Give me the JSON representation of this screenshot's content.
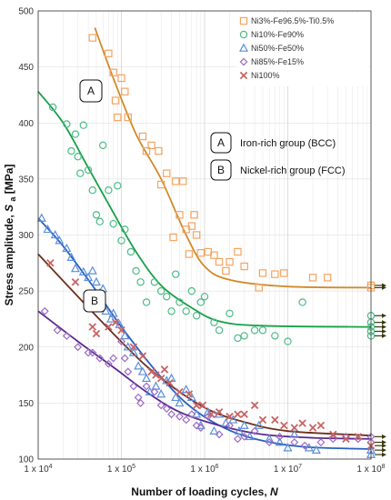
{
  "chart_data": {
    "type": "scatter",
    "xlabel_prefix": "Number of loading cycles,",
    "xlabel_var": "N",
    "ylabel_prefix": "Stress amplitude,",
    "ylabel_var": "S",
    "ylabel_sub": "a",
    "ylabel_unit": "[MPa]",
    "xlim": [
      10000,
      100000000
    ],
    "ylim": [
      100,
      500
    ],
    "yticks": [
      100,
      150,
      200,
      250,
      300,
      350,
      400,
      450,
      500
    ],
    "xticks": [
      {
        "base": "1 x 10",
        "exp": "4",
        "value": 10000
      },
      {
        "base": "1 x 10",
        "exp": "5",
        "value": 100000
      },
      {
        "base": "1 x 10",
        "exp": "6",
        "value": 1000000
      },
      {
        "base": "1 x 10",
        "exp": "7",
        "value": 10000000
      },
      {
        "base": "1 x 10",
        "exp": "8",
        "value": 100000000
      }
    ],
    "grid": true,
    "legend_position": "top-right",
    "series": [
      {
        "name": "Ni3%-Fe96.5%-Ti0.5%",
        "color": "#F4A460",
        "line_color": "#D08A2A",
        "marker": "square",
        "points": [
          [
            45000,
            476
          ],
          [
            70000,
            462
          ],
          [
            80000,
            445
          ],
          [
            100000,
            440
          ],
          [
            85000,
            420
          ],
          [
            110000,
            428
          ],
          [
            90000,
            405
          ],
          [
            120000,
            405
          ],
          [
            180000,
            388
          ],
          [
            200000,
            375
          ],
          [
            230000,
            380
          ],
          [
            280000,
            375
          ],
          [
            300000,
            345
          ],
          [
            350000,
            355
          ],
          [
            450000,
            348
          ],
          [
            500000,
            318
          ],
          [
            420000,
            298
          ],
          [
            550000,
            348
          ],
          [
            600000,
            305
          ],
          [
            700000,
            308
          ],
          [
            800000,
            300
          ],
          [
            750000,
            318
          ],
          [
            900000,
            284
          ],
          [
            1100000,
            285
          ],
          [
            650000,
            283
          ],
          [
            1300000,
            282
          ],
          [
            1500000,
            276
          ],
          [
            1800000,
            268
          ],
          [
            2000000,
            276
          ],
          [
            2500000,
            285
          ],
          [
            3000000,
            272
          ],
          [
            4500000,
            253
          ],
          [
            5000000,
            266
          ],
          [
            7000000,
            265
          ],
          [
            9000000,
            266
          ],
          [
            20000000,
            262
          ],
          [
            30000000,
            262
          ]
        ],
        "runout": [
          [
            100000000,
            255
          ],
          [
            100000000,
            253
          ]
        ],
        "curve": [
          [
            48000,
            485
          ],
          [
            80000,
            440
          ],
          [
            150000,
            390
          ],
          [
            300000,
            350
          ],
          [
            600000,
            300
          ],
          [
            1000000,
            272
          ],
          [
            2000000,
            260
          ],
          [
            10000000,
            254
          ],
          [
            100000000,
            253
          ]
        ]
      },
      {
        "name": "Ni10%-Fe90%",
        "color": "#4DBB88",
        "line_color": "#18A048",
        "marker": "circle",
        "points": [
          [
            15000,
            414
          ],
          [
            22000,
            399
          ],
          [
            25000,
            375
          ],
          [
            28000,
            390
          ],
          [
            30000,
            370
          ],
          [
            32000,
            355
          ],
          [
            35000,
            398
          ],
          [
            40000,
            358
          ],
          [
            45000,
            340
          ],
          [
            50000,
            318
          ],
          [
            55000,
            312
          ],
          [
            60000,
            380
          ],
          [
            70000,
            340
          ],
          [
            80000,
            310
          ],
          [
            90000,
            344
          ],
          [
            100000,
            295
          ],
          [
            110000,
            305
          ],
          [
            130000,
            285
          ],
          [
            150000,
            268
          ],
          [
            170000,
            258
          ],
          [
            200000,
            240
          ],
          [
            250000,
            258
          ],
          [
            300000,
            250
          ],
          [
            350000,
            245
          ],
          [
            400000,
            232
          ],
          [
            450000,
            265
          ],
          [
            500000,
            240
          ],
          [
            600000,
            232
          ],
          [
            700000,
            250
          ],
          [
            800000,
            228
          ],
          [
            900000,
            240
          ],
          [
            1000000,
            245
          ],
          [
            1300000,
            222
          ],
          [
            1500000,
            215
          ],
          [
            2000000,
            230
          ],
          [
            2500000,
            208
          ],
          [
            3000000,
            210
          ],
          [
            4000000,
            215
          ],
          [
            5000000,
            215
          ],
          [
            7000000,
            210
          ],
          [
            10000000,
            205
          ],
          [
            15000000,
            240
          ]
        ],
        "runout": [
          [
            100000000,
            228
          ],
          [
            100000000,
            222
          ],
          [
            100000000,
            218
          ],
          [
            100000000,
            214
          ],
          [
            100000000,
            210
          ]
        ],
        "curve": [
          [
            10000,
            428
          ],
          [
            20000,
            400
          ],
          [
            40000,
            360
          ],
          [
            80000,
            320
          ],
          [
            150000,
            285
          ],
          [
            300000,
            255
          ],
          [
            700000,
            235
          ],
          [
            1500000,
            223
          ],
          [
            5000000,
            219
          ],
          [
            100000000,
            218
          ]
        ]
      },
      {
        "name": "Ni50%-Fe50%",
        "color": "#5B8FDB",
        "line_color": "#2A5FC0",
        "marker": "triangle",
        "points": [
          [
            11000,
            315
          ],
          [
            13000,
            305
          ],
          [
            16000,
            300
          ],
          [
            18000,
            295
          ],
          [
            22000,
            288
          ],
          [
            25000,
            280
          ],
          [
            28000,
            270
          ],
          [
            35000,
            267
          ],
          [
            40000,
            262
          ],
          [
            45000,
            268
          ],
          [
            50000,
            258
          ],
          [
            55000,
            248
          ],
          [
            60000,
            252
          ],
          [
            65000,
            232
          ],
          [
            75000,
            225
          ],
          [
            80000,
            230
          ],
          [
            95000,
            220
          ],
          [
            110000,
            210
          ],
          [
            120000,
            200
          ],
          [
            140000,
            195
          ],
          [
            160000,
            183
          ],
          [
            180000,
            178
          ],
          [
            200000,
            172
          ],
          [
            220000,
            160
          ],
          [
            260000,
            165
          ],
          [
            300000,
            158
          ],
          [
            350000,
            170
          ],
          [
            400000,
            172
          ],
          [
            450000,
            155
          ],
          [
            500000,
            150
          ],
          [
            600000,
            162
          ],
          [
            700000,
            155
          ],
          [
            800000,
            140
          ],
          [
            900000,
            130
          ],
          [
            1100000,
            142
          ],
          [
            1300000,
            125
          ],
          [
            1500000,
            140
          ],
          [
            1800000,
            132
          ],
          [
            2200000,
            135
          ],
          [
            2600000,
            125
          ],
          [
            3000000,
            130
          ],
          [
            3500000,
            120
          ],
          [
            4500000,
            130
          ],
          [
            6000000,
            118
          ],
          [
            8000000,
            115
          ],
          [
            10000000,
            110
          ],
          [
            12000000,
            122
          ],
          [
            18000000,
            110
          ],
          [
            22000000,
            108
          ]
        ],
        "runout": [
          [
            100000000,
            108
          ],
          [
            100000000,
            104
          ]
        ],
        "curve": [
          [
            10000,
            315
          ],
          [
            20000,
            290
          ],
          [
            50000,
            250
          ],
          [
            100000,
            218
          ],
          [
            250000,
            180
          ],
          [
            600000,
            150
          ],
          [
            1500000,
            130
          ],
          [
            4000000,
            118
          ],
          [
            15000000,
            111
          ],
          [
            100000000,
            109
          ]
        ]
      },
      {
        "name": "Ni85%-Fe15%",
        "color": "#9B6BC4",
        "line_color": "#5B2A90",
        "marker": "diamond",
        "points": [
          [
            12000,
            232
          ],
          [
            17000,
            215
          ],
          [
            22000,
            210
          ],
          [
            30000,
            200
          ],
          [
            40000,
            195
          ],
          [
            45000,
            195
          ],
          [
            55000,
            190
          ],
          [
            70000,
            185
          ],
          [
            80000,
            190
          ],
          [
            100000,
            205
          ],
          [
            110000,
            190
          ],
          [
            120000,
            178
          ],
          [
            140000,
            165
          ],
          [
            160000,
            155
          ],
          [
            170000,
            150
          ],
          [
            200000,
            165
          ],
          [
            250000,
            160
          ],
          [
            300000,
            148
          ],
          [
            350000,
            145
          ],
          [
            400000,
            140
          ],
          [
            500000,
            138
          ],
          [
            600000,
            135
          ],
          [
            700000,
            140
          ],
          [
            800000,
            130
          ],
          [
            900000,
            128
          ],
          [
            1100000,
            138
          ],
          [
            1300000,
            140
          ],
          [
            1500000,
            122
          ],
          [
            2000000,
            130
          ],
          [
            2500000,
            118
          ],
          [
            3000000,
            120
          ],
          [
            4000000,
            125
          ],
          [
            6000000,
            115
          ],
          [
            8000000,
            120
          ],
          [
            12000000,
            115
          ],
          [
            16000000,
            112
          ],
          [
            25000000,
            115
          ],
          [
            35000000,
            118
          ],
          [
            50000000,
            120
          ],
          [
            70000000,
            118
          ]
        ],
        "runout": [
          [
            100000000,
            120
          ],
          [
            100000000,
            115
          ]
        ],
        "curve": [
          [
            10000,
            232
          ],
          [
            30000,
            205
          ],
          [
            80000,
            182
          ],
          [
            200000,
            160
          ],
          [
            500000,
            142
          ],
          [
            1500000,
            130
          ],
          [
            5000000,
            122
          ],
          [
            20000000,
            119
          ],
          [
            100000000,
            118
          ]
        ]
      },
      {
        "name": "Ni100%",
        "color": "#C86464",
        "line_color": "#6E3020",
        "marker": "x",
        "points": [
          [
            14000,
            275
          ],
          [
            28000,
            258
          ],
          [
            45000,
            218
          ],
          [
            50000,
            212
          ],
          [
            70000,
            218
          ],
          [
            85000,
            222
          ],
          [
            100000,
            215
          ],
          [
            140000,
            200
          ],
          [
            180000,
            192
          ],
          [
            230000,
            178
          ],
          [
            260000,
            175
          ],
          [
            300000,
            172
          ],
          [
            330000,
            180
          ],
          [
            380000,
            168
          ],
          [
            500000,
            160
          ],
          [
            650000,
            158
          ],
          [
            800000,
            148
          ],
          [
            950000,
            148
          ],
          [
            1200000,
            140
          ],
          [
            1500000,
            142
          ],
          [
            2000000,
            138
          ],
          [
            2500000,
            140
          ],
          [
            3000000,
            140
          ],
          [
            4000000,
            148
          ],
          [
            5000000,
            135
          ],
          [
            7000000,
            135
          ],
          [
            9000000,
            130
          ],
          [
            12000000,
            128
          ],
          [
            15000000,
            132
          ],
          [
            20000000,
            128
          ],
          [
            25000000,
            130
          ],
          [
            35000000,
            122
          ],
          [
            50000000,
            118
          ],
          [
            70000000,
            120
          ]
        ],
        "runout": [
          [
            100000000,
            112
          ]
        ],
        "curve": [
          [
            10000,
            283
          ],
          [
            30000,
            245
          ],
          [
            80000,
            212
          ],
          [
            200000,
            183
          ],
          [
            500000,
            160
          ],
          [
            1200000,
            143
          ],
          [
            3000000,
            133
          ],
          [
            10000000,
            125
          ],
          [
            100000000,
            121
          ]
        ]
      }
    ],
    "annotations": [
      {
        "id": "A",
        "label": "A",
        "text": "Iron-rich group (BCC)"
      },
      {
        "id": "B",
        "label": "B",
        "text": "Nickel-rich group (FCC)"
      }
    ]
  }
}
